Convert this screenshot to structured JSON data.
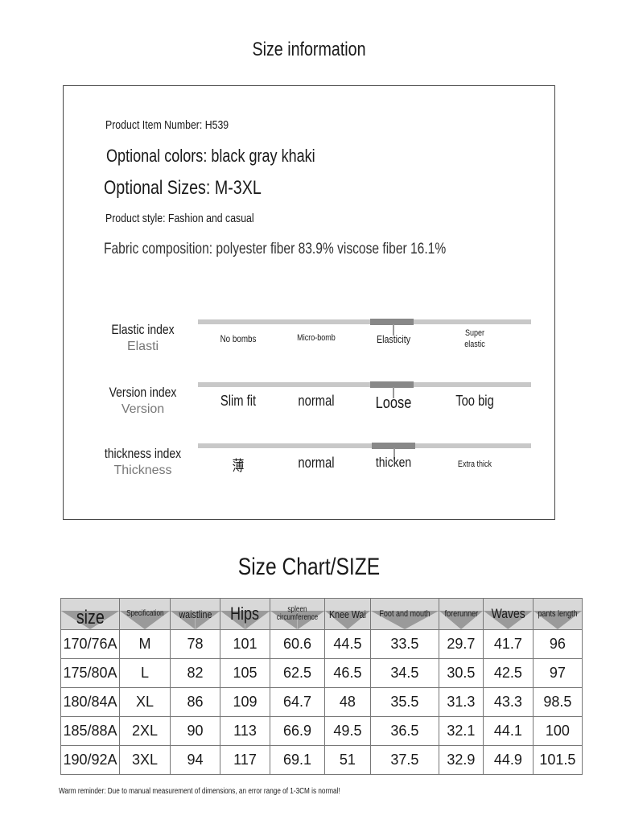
{
  "info": {
    "title": "Size information",
    "item_number": "Product Item Number: H539",
    "colors": "Optional colors: black gray khaki",
    "sizes": "Optional Sizes: M-3XL",
    "style": "Product style: Fashion and casual",
    "fabric": "Fabric composition: polyester fiber 83.9% viscose fiber 16.1%"
  },
  "indices": [
    {
      "title": "Elastic index",
      "subtitle": "Elasti",
      "options": [
        "No bombs",
        "Micro-bomb",
        "Elasticity",
        "Super elastic"
      ],
      "selected": 2
    },
    {
      "title": "Version index",
      "subtitle": "Version",
      "options": [
        "Slim fit",
        "normal",
        "Loose",
        "Too big"
      ],
      "selected": 2
    },
    {
      "title": "thickness index",
      "subtitle": "Thickness",
      "options": [
        "薄",
        "normal",
        "thicken",
        "Extra thick"
      ],
      "selected": 2
    }
  ],
  "chart": {
    "title": "Size Chart/SIZE",
    "headers": [
      "size",
      "Specification",
      "waistline",
      "Hips",
      "spleen circumference",
      "Knee Wai",
      "Foot and mouth",
      "forerunner",
      "Waves",
      "pants length"
    ],
    "rows": [
      [
        "170/76A",
        "M",
        "78",
        "101",
        "60.6",
        "44.5",
        "33.5",
        "29.7",
        "41.7",
        "96"
      ],
      [
        "175/80A",
        "L",
        "82",
        "105",
        "62.5",
        "46.5",
        "34.5",
        "30.5",
        "42.5",
        "97"
      ],
      [
        "180/84A",
        "XL",
        "86",
        "109",
        "64.7",
        "48",
        "35.5",
        "31.3",
        "43.3",
        "98.5"
      ],
      [
        "185/88A",
        "2XL",
        "90",
        "113",
        "66.9",
        "49.5",
        "36.5",
        "32.1",
        "44.1",
        "100"
      ],
      [
        "190/92A",
        "3XL",
        "94",
        "117",
        "69.1",
        "51",
        "37.5",
        "32.9",
        "44.9",
        "101.5"
      ]
    ]
  },
  "note": "Warm reminder: Due to manual measurement of dimensions, an error range of 1-3CM is normal!"
}
